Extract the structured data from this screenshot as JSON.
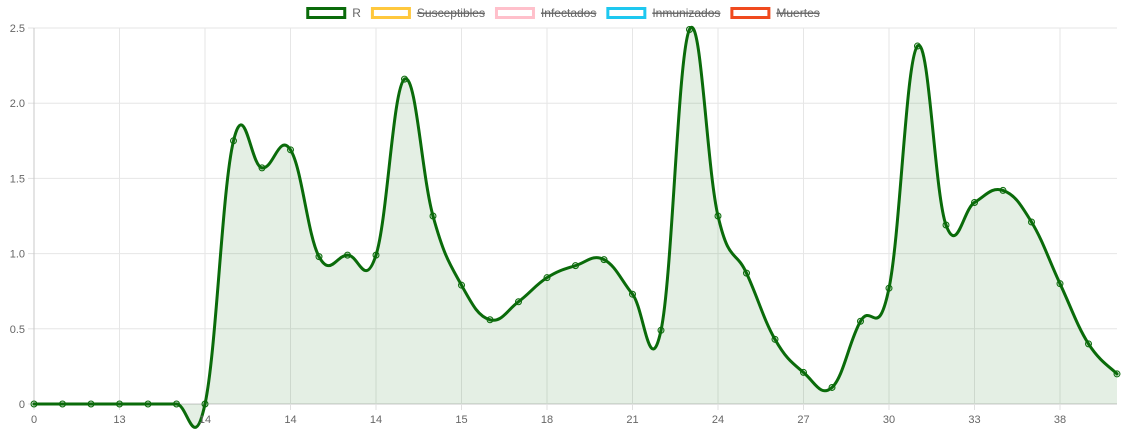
{
  "chart_data": {
    "type": "line",
    "title": "",
    "xlabel": "",
    "ylabel": "",
    "ylim": [
      0,
      2.5
    ],
    "yticks": [
      "0",
      "0.5",
      "1.0",
      "1.5",
      "2.0",
      "2.5"
    ],
    "xtick_labels": [
      "0",
      "13",
      "14",
      "14",
      "14",
      "15",
      "18",
      "21",
      "24",
      "27",
      "30",
      "33",
      "38"
    ],
    "grid": true,
    "legend_position": "top",
    "legend": [
      {
        "label": "R",
        "color": "#0a6b0a",
        "hidden": false
      },
      {
        "label": "Susceptibles",
        "color": "#ffc83d",
        "hidden": true
      },
      {
        "label": "Infectados",
        "color": "#ffc0cb",
        "hidden": true
      },
      {
        "label": "Inmunizados",
        "color": "#1ec8f0",
        "hidden": true
      },
      {
        "label": "Muertes",
        "color": "#f04a1e",
        "hidden": true
      }
    ],
    "series": [
      {
        "name": "R",
        "color": "#0a6b0a",
        "fill": "rgba(10,107,10,0.11)",
        "values": [
          0,
          0,
          0,
          0,
          0,
          0,
          0,
          1.75,
          1.57,
          1.69,
          0.98,
          0.99,
          0.99,
          2.16,
          1.25,
          0.79,
          0.56,
          0.68,
          0.84,
          0.92,
          0.96,
          0.73,
          0.49,
          2.49,
          1.25,
          0.87,
          0.43,
          0.21,
          0.11,
          0.55,
          0.77,
          2.38,
          1.19,
          1.34,
          1.42,
          1.21,
          0.8,
          0.4,
          0.2
        ]
      }
    ]
  }
}
